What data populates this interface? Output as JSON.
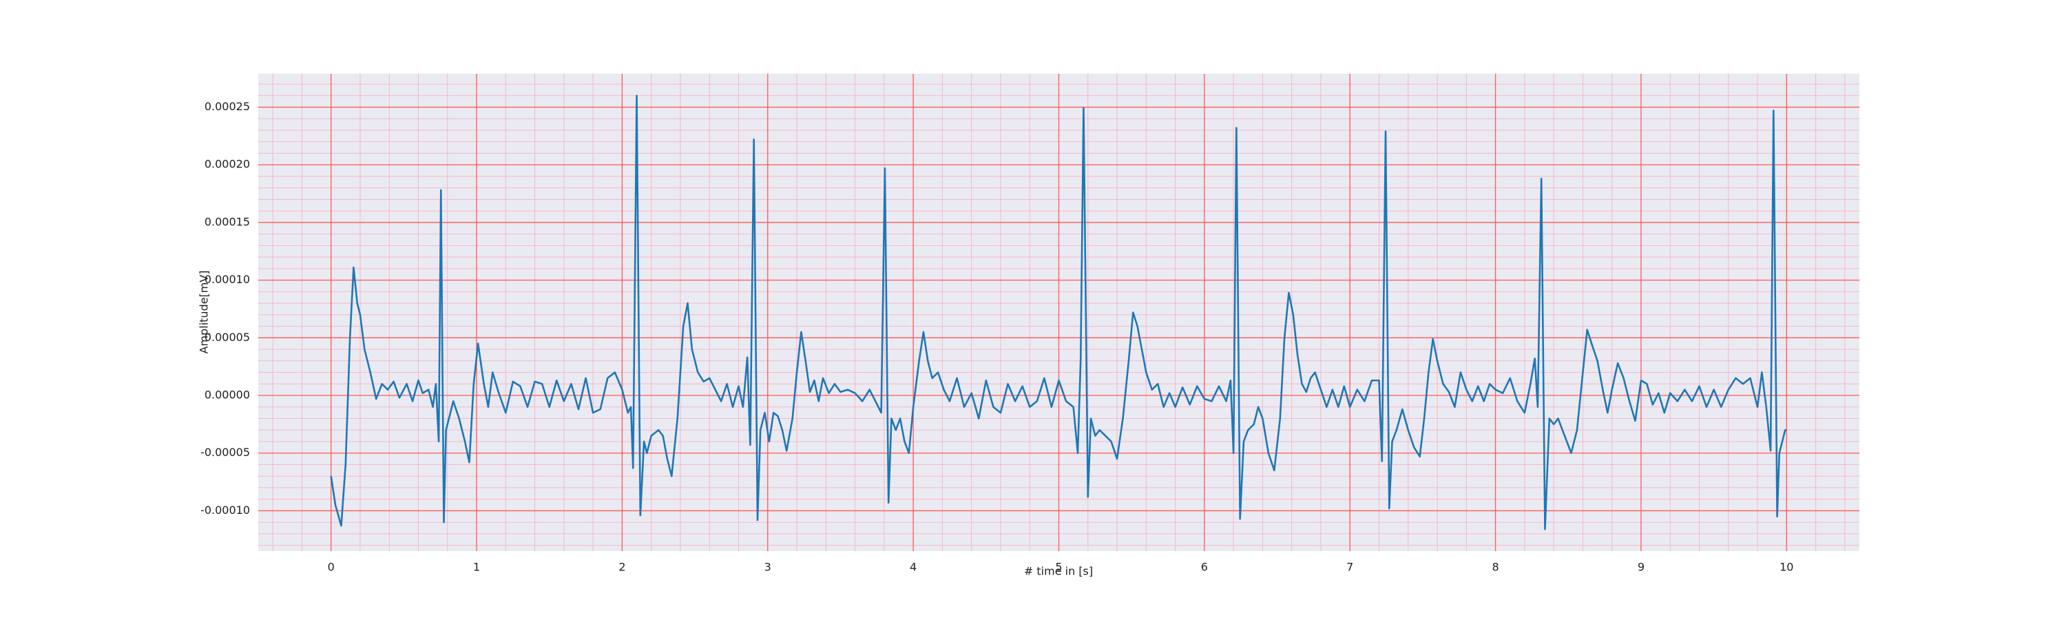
{
  "chart_data": {
    "type": "line",
    "x_label": "# time in [s]",
    "y_label": "Amplitude[mV]",
    "color": "#1f77b4",
    "background": "#eaeaf2",
    "grid": true,
    "grid_color": "#ff5a5a",
    "minor_grid": true,
    "minor_grid_color": "#f7b8c8",
    "xlim": [
      -0.5,
      10.5
    ],
    "xticks": [
      0,
      1,
      2,
      3,
      4,
      5,
      6,
      7,
      8,
      9,
      10
    ],
    "ylim": [
      -0.000135,
      0.000279
    ],
    "yticks": [
      {
        "value": -0.0001,
        "label": "-0.00010"
      },
      {
        "value": -5e-05,
        "label": "-0.00005"
      },
      {
        "value": 0,
        "label": "0.00000"
      },
      {
        "value": 5e-05,
        "label": "0.00005"
      },
      {
        "value": 0.0001,
        "label": "0.00010"
      },
      {
        "value": 0.00015,
        "label": "0.00015"
      },
      {
        "value": 0.0002,
        "label": "0.00020"
      },
      {
        "value": 0.00025,
        "label": "0.00025"
      }
    ],
    "x": [
      0,
      0.03,
      0.07,
      0.1,
      0.13,
      0.155,
      0.18,
      0.2,
      0.23,
      0.27,
      0.31,
      0.35,
      0.39,
      0.43,
      0.47,
      0.52,
      0.56,
      0.6,
      0.63,
      0.67,
      0.7,
      0.72,
      0.74,
      0.755,
      0.775,
      0.79,
      0.81,
      0.84,
      0.88,
      0.92,
      0.95,
      0.98,
      1.01,
      1.05,
      1.08,
      1.11,
      1.15,
      1.2,
      1.25,
      1.3,
      1.35,
      1.4,
      1.45,
      1.5,
      1.55,
      1.6,
      1.65,
      1.7,
      1.75,
      1.8,
      1.85,
      1.9,
      1.95,
      2,
      2.04,
      2.06,
      2.075,
      2.1,
      2.125,
      2.15,
      2.17,
      2.2,
      2.25,
      2.28,
      2.31,
      2.34,
      2.38,
      2.42,
      2.45,
      2.48,
      2.52,
      2.56,
      2.6,
      2.64,
      2.68,
      2.72,
      2.76,
      2.8,
      2.83,
      2.86,
      2.88,
      2.905,
      2.93,
      2.95,
      2.98,
      3.01,
      3.04,
      3.07,
      3.1,
      3.13,
      3.17,
      3.2,
      3.23,
      3.26,
      3.29,
      3.32,
      3.35,
      3.38,
      3.42,
      3.46,
      3.5,
      3.55,
      3.6,
      3.65,
      3.7,
      3.74,
      3.78,
      3.805,
      3.83,
      3.85,
      3.88,
      3.91,
      3.94,
      3.97,
      4,
      4.04,
      4.07,
      4.1,
      4.13,
      4.17,
      4.21,
      4.25,
      4.3,
      4.35,
      4.4,
      4.45,
      4.5,
      4.55,
      4.6,
      4.65,
      4.7,
      4.75,
      4.8,
      4.85,
      4.9,
      4.95,
      5,
      5.05,
      5.1,
      5.13,
      5.15,
      5.17,
      5.2,
      5.22,
      5.25,
      5.28,
      5.32,
      5.36,
      5.4,
      5.44,
      5.48,
      5.51,
      5.54,
      5.57,
      5.6,
      5.64,
      5.68,
      5.72,
      5.76,
      5.8,
      5.85,
      5.9,
      5.95,
      6,
      6.05,
      6.1,
      6.15,
      6.18,
      6.2,
      6.22,
      6.245,
      6.27,
      6.3,
      6.34,
      6.37,
      6.4,
      6.44,
      6.48,
      6.52,
      6.55,
      6.58,
      6.61,
      6.64,
      6.67,
      6.7,
      6.73,
      6.76,
      6.8,
      6.84,
      6.88,
      6.92,
      6.96,
      7,
      7.05,
      7.1,
      7.15,
      7.2,
      7.22,
      7.245,
      7.27,
      7.29,
      7.32,
      7.36,
      7.4,
      7.44,
      7.48,
      7.51,
      7.54,
      7.57,
      7.6,
      7.64,
      7.68,
      7.72,
      7.76,
      7.8,
      7.84,
      7.88,
      7.92,
      7.96,
      8,
      8.05,
      8.1,
      8.15,
      8.2,
      8.24,
      8.27,
      8.29,
      8.315,
      8.34,
      8.37,
      8.4,
      8.43,
      8.46,
      8.49,
      8.52,
      8.56,
      8.6,
      8.63,
      8.66,
      8.7,
      8.74,
      8.77,
      8.8,
      8.84,
      8.88,
      8.92,
      8.96,
      9,
      9.04,
      9.08,
      9.12,
      9.16,
      9.2,
      9.25,
      9.3,
      9.35,
      9.4,
      9.45,
      9.5,
      9.55,
      9.6,
      9.65,
      9.7,
      9.75,
      9.8,
      9.83,
      9.86,
      9.89,
      9.91,
      9.935,
      9.95,
      9.97,
      9.99,
      10
    ],
    "values": [
      -7e-05,
      -9.5e-05,
      -0.000113,
      -6e-05,
      5e-05,
      0.000111,
      8e-05,
      7e-05,
      4e-05,
      2e-05,
      -3e-06,
      1e-05,
      5e-06,
      1.2e-05,
      -2e-06,
      1e-05,
      -5e-06,
      1.3e-05,
      2e-06,
      5e-06,
      -1e-05,
      1e-05,
      -4e-05,
      0.000178,
      -0.00011,
      -3e-05,
      -2e-05,
      -5e-06,
      -2e-05,
      -4e-05,
      -5.8e-05,
      1e-05,
      4.5e-05,
      1e-05,
      -1e-05,
      2e-05,
      3e-06,
      -1.5e-05,
      1.2e-05,
      8e-06,
      -1e-05,
      1.2e-05,
      1e-05,
      -1e-05,
      1.3e-05,
      -5e-06,
      1e-05,
      -1.2e-05,
      1.5e-05,
      -1.5e-05,
      -1.2e-05,
      1.5e-05,
      2e-05,
      5e-06,
      -1.5e-05,
      -1e-05,
      -6.3e-05,
      0.00026,
      -0.000104,
      -4e-05,
      -5e-05,
      -3.5e-05,
      -3e-05,
      -3.5e-05,
      -5.5e-05,
      -7e-05,
      -2e-05,
      6e-05,
      8e-05,
      4e-05,
      2e-05,
      1.2e-05,
      1.5e-05,
      5e-06,
      -5e-06,
      1e-05,
      -1e-05,
      8e-06,
      -1e-05,
      3.3e-05,
      -4.3e-05,
      0.000222,
      -0.000108,
      -3e-05,
      -1.5e-05,
      -4e-05,
      -1.5e-05,
      -1.8e-05,
      -3e-05,
      -4.8e-05,
      -2e-05,
      2e-05,
      5.5e-05,
      3e-05,
      3e-06,
      1.3e-05,
      -5e-06,
      1.5e-05,
      2e-06,
      1e-05,
      3e-06,
      5e-06,
      2e-06,
      -5e-06,
      5e-06,
      -5e-06,
      -1.5e-05,
      0.000197,
      -9.3e-05,
      -2e-05,
      -3e-05,
      -2e-05,
      -4e-05,
      -5e-05,
      -1e-05,
      3e-05,
      5.5e-05,
      3e-05,
      1.5e-05,
      2e-05,
      5e-06,
      -5e-06,
      1.5e-05,
      -1e-05,
      2e-06,
      -2e-05,
      1.3e-05,
      -1e-05,
      -1.5e-05,
      1e-05,
      -5e-06,
      8e-06,
      -1e-05,
      -5e-06,
      1.5e-05,
      -1e-05,
      1.3e-05,
      -5e-06,
      -1e-05,
      -5e-05,
      3e-05,
      0.000249,
      -8.8e-05,
      -2e-05,
      -3.5e-05,
      -3e-05,
      -3.5e-05,
      -4e-05,
      -5.5e-05,
      -2e-05,
      3e-05,
      7.2e-05,
      6e-05,
      4e-05,
      2e-05,
      5e-06,
      1e-05,
      -1e-05,
      2e-06,
      -1e-05,
      7e-06,
      -8e-06,
      8e-06,
      -3e-06,
      -5e-06,
      8e-06,
      -5e-06,
      1.3e-05,
      -5e-05,
      0.000232,
      -0.000107,
      -4e-05,
      -3e-05,
      -2.5e-05,
      -1e-05,
      -2e-05,
      -5e-05,
      -6.5e-05,
      -2e-05,
      5e-05,
      8.9e-05,
      7e-05,
      3.5e-05,
      1e-05,
      3e-06,
      1.5e-05,
      2e-05,
      5e-06,
      -1e-05,
      5e-06,
      -1e-05,
      8e-06,
      -1e-05,
      5e-06,
      -5e-06,
      1.3e-05,
      1.3e-05,
      -5.7e-05,
      0.000229,
      -9.8e-05,
      -4e-05,
      -3e-05,
      -1.2e-05,
      -3e-05,
      -4.5e-05,
      -5.3e-05,
      -2e-05,
      2e-05,
      4.9e-05,
      3e-05,
      1e-05,
      3e-06,
      -1e-05,
      2e-05,
      5e-06,
      -5e-06,
      8e-06,
      -5e-06,
      1e-05,
      5e-06,
      2e-06,
      1.5e-05,
      -5e-06,
      -1.5e-05,
      1e-05,
      3.2e-05,
      -1e-05,
      0.000188,
      -0.000116,
      -2e-05,
      -2.5e-05,
      -2e-05,
      -3e-05,
      -4e-05,
      -5e-05,
      -3e-05,
      2e-05,
      5.7e-05,
      4.5e-05,
      3e-05,
      3e-06,
      -1.5e-05,
      5e-06,
      2.8e-05,
      1.5e-05,
      -5e-06,
      -2.2e-05,
      1.3e-05,
      1e-05,
      -8e-06,
      2e-06,
      -1.5e-05,
      2e-06,
      -5e-06,
      5e-06,
      -5e-06,
      8e-06,
      -1e-05,
      5e-06,
      -1e-05,
      5e-06,
      1.5e-05,
      1e-05,
      1.5e-05,
      -1e-05,
      2e-05,
      -1e-05,
      -4.8e-05,
      0.000247,
      -0.000105,
      -5e-05,
      -4e-05,
      -3e-05,
      -3e-05
    ]
  }
}
